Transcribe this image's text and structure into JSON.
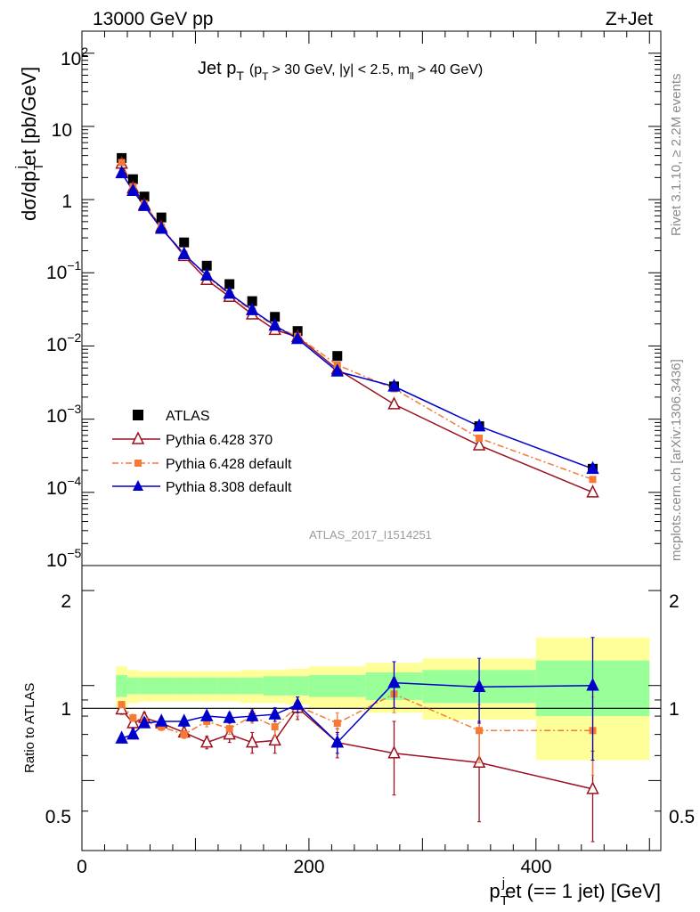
{
  "header": {
    "left": "13000 GeV pp",
    "right": "Z+Jet"
  },
  "plot": {
    "title_main": "Jet p",
    "title_main_sub": "T",
    "title_cuts": "(p",
    "title_cuts_sub": "T",
    "title_cuts_rest": "> 30 GeV, |y| < 2.5, m",
    "title_cuts_sub2": "ll",
    "title_cuts_end": "> 40 GeV)",
    "analysis_id": "ATLAS_2017_I1514251",
    "side_top": "Rivet 3.1.10, ≥ 2.2M events",
    "side_bottom": "mcplots.cern.ch [arXiv:1306.3436]"
  },
  "axes": {
    "ylabel_main": "dσ/dp",
    "ylabel_main_sub": "T",
    "ylabel_main_sup": "j",
    "ylabel_main_rest": "et [pb/GeV]",
    "ylabel_ratio": "Ratio to ATLAS",
    "xlabel": "p",
    "xlabel_sub": "T",
    "xlabel_sup": "j",
    "xlabel_rest": "et (== 1 jet) [GeV]",
    "xticks": [
      "0",
      "200",
      "400"
    ],
    "yticks_main": [
      "10",
      "1",
      "10"
    ],
    "ratio_ticks": [
      "0.5",
      "1",
      "2"
    ]
  },
  "legend": [
    {
      "label": "ATLAS",
      "color": "#000000",
      "marker": "square"
    },
    {
      "label": "Pythia 6.428 370",
      "color": "#9b111e",
      "marker": "triangle-open"
    },
    {
      "label": "Pythia 6.428 default",
      "color": "#f47a35",
      "marker": "square-small"
    },
    {
      "label": "Pythia 8.308 default",
      "color": "#0000cc",
      "marker": "triangle"
    }
  ],
  "chart_data": {
    "type": "scatter",
    "x_range": [
      0,
      510
    ],
    "y_range_main": [
      1e-05,
      200
    ],
    "y_scale_main": "log",
    "y_range_ratio": [
      0.3,
      2.4
    ],
    "y_scale_ratio": "log",
    "x": [
      35,
      45,
      55,
      70,
      90,
      110,
      130,
      150,
      170,
      190,
      225,
      275,
      350,
      450
    ],
    "bin_edges": [
      30,
      40,
      50,
      60,
      80,
      100,
      120,
      140,
      160,
      180,
      200,
      250,
      300,
      400,
      500
    ],
    "data_points": [
      3.7,
      1.9,
      1.1,
      0.57,
      0.26,
      0.125,
      0.07,
      0.041,
      0.025,
      0.016,
      0.0073,
      0.0028,
      0.0008,
      0.00021
    ],
    "series": [
      {
        "name": "Pythia 6.428 370",
        "values": [
          3.1,
          1.43,
          0.85,
          0.42,
          0.17,
          0.08,
          0.047,
          0.027,
          0.0166,
          0.0133,
          0.0048,
          0.0016,
          0.00044,
          0.0001
        ],
        "ratio": [
          0.84,
          0.76,
          0.79,
          0.76,
          0.71,
          0.66,
          0.7,
          0.66,
          0.67,
          0.85,
          0.66,
          0.61,
          0.57,
          0.47
        ],
        "ratio_err": [
          0.03,
          0.03,
          0.03,
          0.02,
          0.03,
          0.03,
          0.04,
          0.05,
          0.06,
          0.07,
          0.07,
          0.16,
          0.2,
          0.15
        ]
      },
      {
        "name": "Pythia 6.428 default",
        "values": [
          3.2,
          1.5,
          0.88,
          0.42,
          0.18,
          0.09,
          0.05,
          0.03,
          0.0185,
          0.0135,
          0.0055,
          0.0026,
          0.00055,
          0.00015
        ],
        "ratio": [
          0.87,
          0.79,
          0.77,
          0.74,
          0.7,
          0.77,
          0.73,
          0.8,
          0.74,
          0.86,
          0.76,
          0.94,
          0.72,
          0.72
        ],
        "ratio_err": [
          0.02,
          0.02,
          0.02,
          0.02,
          0.02,
          0.03,
          0.03,
          0.04,
          0.05,
          0.06,
          0.06,
          0.12,
          0.15,
          0.2
        ]
      },
      {
        "name": "Pythia 8.308 default",
        "values": [
          2.3,
          1.32,
          0.82,
          0.4,
          0.18,
          0.092,
          0.052,
          0.031,
          0.019,
          0.0125,
          0.0045,
          0.0028,
          0.0008,
          0.00021
        ],
        "ratio": [
          0.68,
          0.7,
          0.76,
          0.77,
          0.77,
          0.8,
          0.79,
          0.8,
          0.81,
          0.87,
          0.66,
          1.02,
          0.99,
          1.0
        ],
        "ratio_err": [
          0.01,
          0.01,
          0.01,
          0.01,
          0.02,
          0.02,
          0.03,
          0.03,
          0.04,
          0.05,
          0.05,
          0.17,
          0.23,
          0.42
        ]
      }
    ],
    "band_stat_half": [
      0.08,
      0.06,
      0.06,
      0.06,
      0.06,
      0.06,
      0.06,
      0.06,
      0.07,
      0.07,
      0.08,
      0.1,
      0.12,
      0.2
    ],
    "band_total_half": [
      0.15,
      0.12,
      0.11,
      0.11,
      0.11,
      0.11,
      0.11,
      0.12,
      0.12,
      0.13,
      0.15,
      0.18,
      0.22,
      0.42
    ]
  }
}
